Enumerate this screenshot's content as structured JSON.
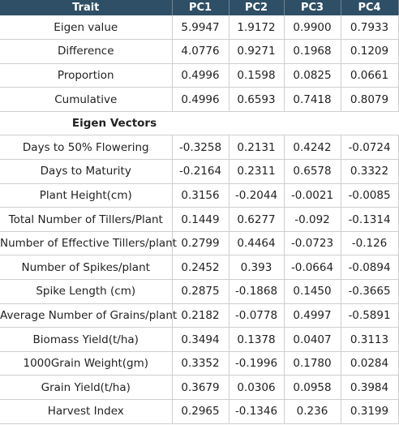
{
  "table": {
    "headers": [
      "Trait",
      "PC1",
      "PC2",
      "PC3",
      "PC4"
    ],
    "summary_rows": [
      {
        "trait": "Eigen value",
        "values": [
          "5.9947",
          "1.9172",
          "0.9900",
          "0.7933"
        ]
      },
      {
        "trait": "Difference",
        "values": [
          "4.0776",
          "0.9271",
          "0.1968",
          "0.1209"
        ]
      },
      {
        "trait": "Proportion",
        "values": [
          "0.4996",
          "0.1598",
          "0.0825",
          "0.0661"
        ]
      },
      {
        "trait": "Cumulative",
        "values": [
          "0.4996",
          "0.6593",
          "0.7418",
          "0.8079"
        ]
      }
    ],
    "section_label": "Eigen Vectors",
    "vector_rows": [
      {
        "trait": "Days to 50% Flowering",
        "values": [
          "-0.3258",
          "0.2131",
          "0.4242",
          "-0.0724"
        ]
      },
      {
        "trait": "Days to Maturity",
        "values": [
          "-0.2164",
          "0.2311",
          "0.6578",
          "0.3322"
        ]
      },
      {
        "trait": "Plant Height(cm)",
        "values": [
          "0.3156",
          "-0.2044",
          "-0.0021",
          "-0.0085"
        ]
      },
      {
        "trait": "Total Number of Tillers/Plant",
        "values": [
          "0.1449",
          "0.6277",
          "-0.092",
          "-0.1314"
        ]
      },
      {
        "trait": "Number of Effective Tillers/plant",
        "values": [
          "0.2799",
          "0.4464",
          "-0.0723",
          "-0.126"
        ]
      },
      {
        "trait": "Number of Spikes/plant",
        "values": [
          "0.2452",
          "0.393",
          "-0.0664",
          "-0.0894"
        ]
      },
      {
        "trait": "Spike Length (cm)",
        "values": [
          "0.2875",
          "-0.1868",
          "0.1450",
          "-0.3665"
        ]
      },
      {
        "trait": "Average Number of Grains/plant",
        "values": [
          "0.2182",
          "-0.0778",
          "0.4997",
          "-0.5891"
        ]
      },
      {
        "trait": "Biomass Yield(t/ha)",
        "values": [
          "0.3494",
          "0.1378",
          "0.0407",
          "0.3113"
        ]
      },
      {
        "trait": "1000Grain Weight(gm)",
        "values": [
          "0.3352",
          "-0.1996",
          "0.1780",
          "0.0284"
        ]
      },
      {
        "trait": "Grain Yield(t/ha)",
        "values": [
          "0.3679",
          "0.0306",
          "0.0958",
          "0.3984"
        ]
      },
      {
        "trait": "Harvest Index",
        "values": [
          "0.2965",
          "-0.1346",
          "0.236",
          "0.3199"
        ]
      }
    ]
  }
}
